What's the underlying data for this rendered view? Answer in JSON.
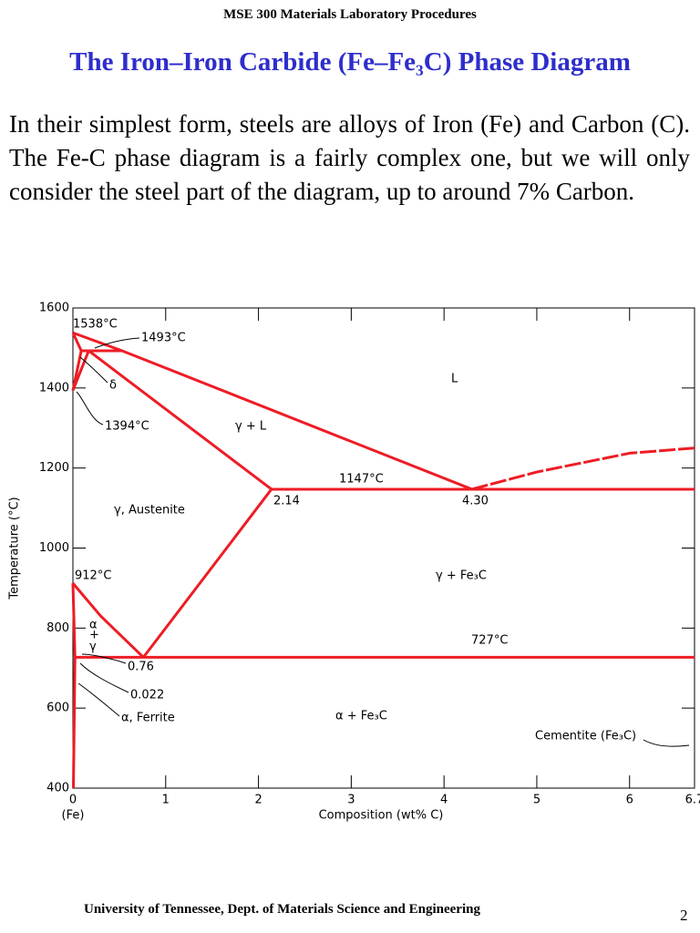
{
  "header": {
    "course": "MSE 300 Materials Laboratory Procedures",
    "title": "The Iron–Iron Carbide (Fe–Fe₃C) Phase Diagram"
  },
  "body": {
    "paragraph": "In their simplest form, steels are alloys of Iron (Fe) and Carbon (C).  The Fe-C phase diagram is a fairly complex one, but we will only consider the steel part of the diagram, up to around 7% Carbon."
  },
  "chart_data": {
    "type": "phase-diagram",
    "y_label": "Temperature (°C)",
    "x_label": "Composition (wt% C)",
    "x_origin_label": "(Fe)",
    "xlim": [
      0,
      6.7
    ],
    "ylim": [
      400,
      1600
    ],
    "xticks": [
      0,
      1,
      2,
      3,
      4,
      5,
      6,
      6.7
    ],
    "yticks": [
      400,
      600,
      800,
      1000,
      1200,
      1400,
      1600
    ],
    "color": "#ee1c25",
    "boundaries": [
      {
        "x": [
          0,
          0.53,
          4.3
        ],
        "y": [
          1538,
          1493,
          1147
        ]
      },
      {
        "x": [
          0,
          0.09
        ],
        "y": [
          1538,
          1493
        ]
      },
      {
        "x": [
          0.09,
          0.53
        ],
        "y": [
          1493,
          1493
        ]
      },
      {
        "x": [
          0,
          0.09
        ],
        "y": [
          1394,
          1493
        ]
      },
      {
        "x": [
          0,
          0.17
        ],
        "y": [
          1394,
          1493
        ]
      },
      {
        "x": [
          0.17,
          2.14
        ],
        "y": [
          1493,
          1147
        ]
      },
      {
        "x": [
          2.14,
          6.7
        ],
        "y": [
          1147,
          1147
        ]
      },
      {
        "x": [
          2.14,
          0.76
        ],
        "y": [
          1147,
          727
        ]
      },
      {
        "x": [
          0,
          0.3,
          0.76
        ],
        "y": [
          912,
          830,
          727
        ]
      },
      {
        "x": [
          0,
          0.022
        ],
        "y": [
          912,
          727
        ]
      },
      {
        "x": [
          0.022,
          6.7
        ],
        "y": [
          727,
          727
        ]
      },
      {
        "x": [
          0.022,
          0.005
        ],
        "y": [
          727,
          400
        ]
      },
      {
        "x": [
          4.3,
          5,
          6,
          6.7
        ],
        "y": [
          1147,
          1190,
          1237,
          1250
        ],
        "dashed": true
      }
    ],
    "annotations": [
      "1538°C",
      "1493°C",
      "δ",
      "1394°C",
      "γ + L",
      "L",
      "1147°C",
      "2.14",
      "4.30",
      "γ, Austenite",
      "912°C",
      "γ + Fe₃C",
      "α",
      "+",
      "γ",
      "727°C",
      "0.76",
      "0.022",
      "α, Ferrite",
      "α + Fe₃C",
      "Cementite (Fe₃C)"
    ]
  },
  "footer": {
    "institution": "University of Tennessee, Dept. of Materials Science and Engineering",
    "page": "2"
  }
}
